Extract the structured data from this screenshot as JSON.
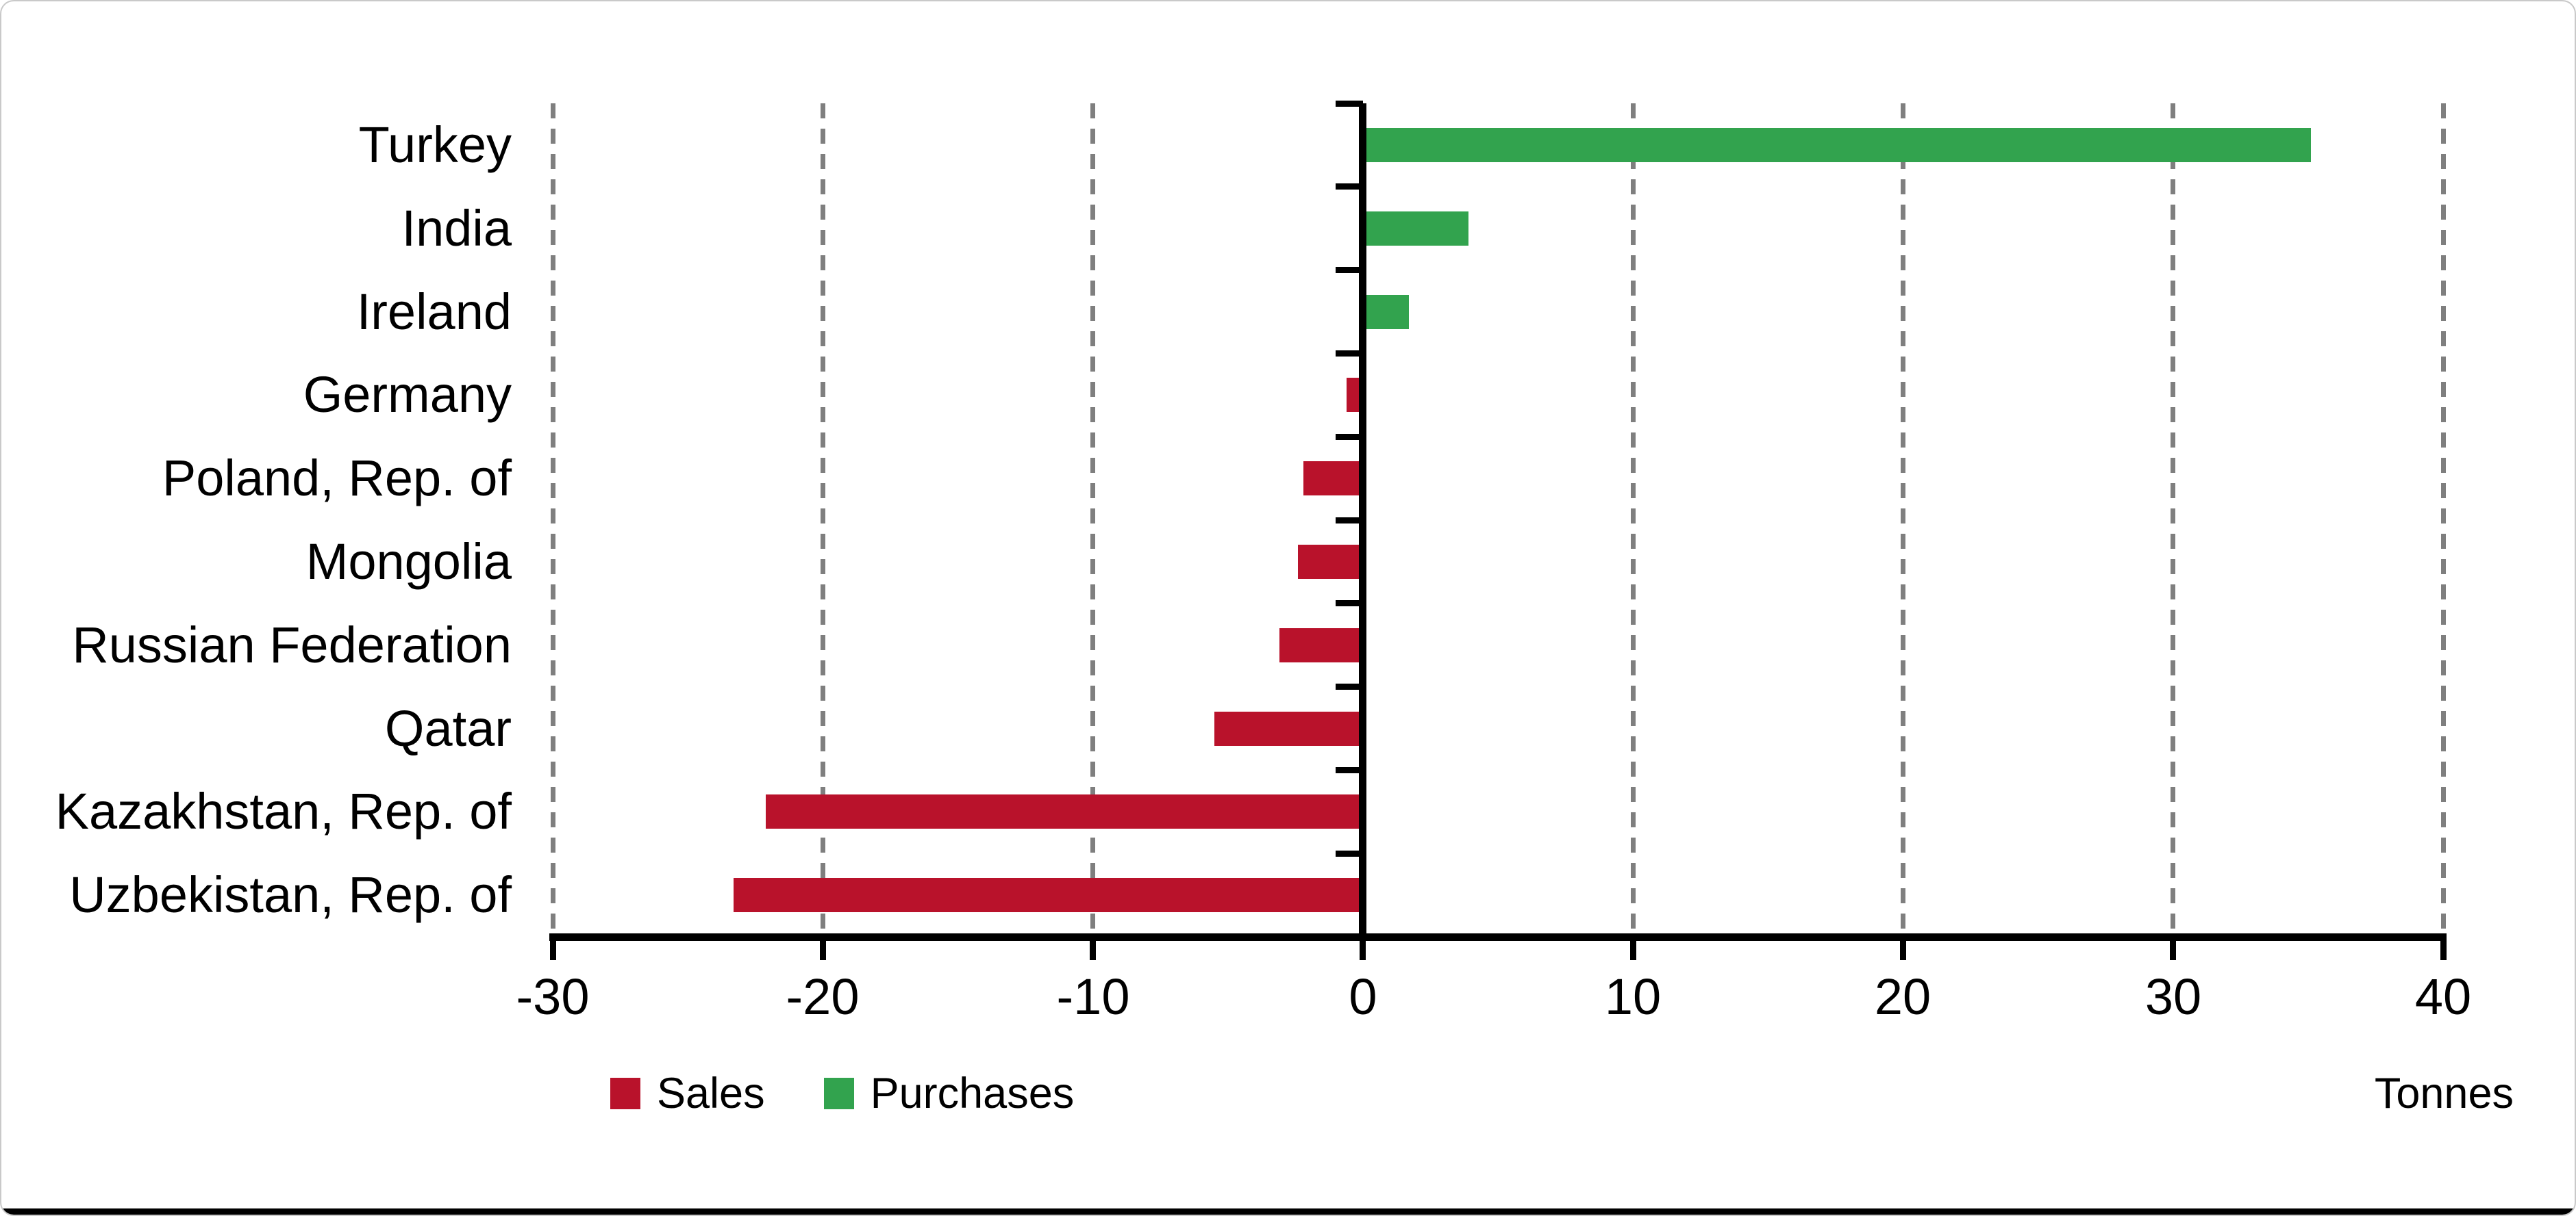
{
  "chart_data": {
    "type": "bar",
    "orientation": "horizontal",
    "title": "",
    "xlabel": "Tonnes",
    "ylabel": "",
    "xlim": [
      -30,
      40
    ],
    "x_ticks": [
      -30,
      -20,
      -10,
      0,
      10,
      20,
      30,
      40
    ],
    "grid": "vertical dashed gridlines at every tick except zero",
    "grid_color": "#7f7f7f",
    "legend_position": "bottom-left",
    "categories": [
      "Turkey",
      "India",
      "Ireland",
      "Germany",
      "Poland, Rep. of",
      "Mongolia",
      "Russian Federation",
      "Qatar",
      "Kazakhstan, Rep. of",
      "Uzbekistan, Rep. of"
    ],
    "series": [
      {
        "name": "Sales",
        "color": "#b9122b",
        "values": [
          null,
          null,
          null,
          -0.6,
          -2.2,
          -2.4,
          -3.1,
          -5.5,
          -22.1,
          -23.3
        ]
      },
      {
        "name": "Purchases",
        "color": "#32a34e",
        "values": [
          35.1,
          3.9,
          1.7,
          null,
          null,
          null,
          null,
          null,
          null,
          null
        ]
      }
    ]
  }
}
